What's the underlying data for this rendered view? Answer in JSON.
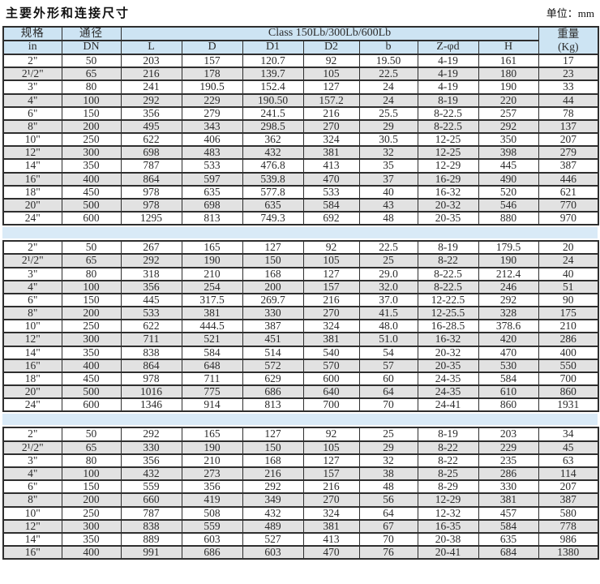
{
  "page": {
    "title": "主要外形和连接尺寸",
    "unit_label": "单位：mm"
  },
  "colors": {
    "header_bg": "#cde4f3",
    "alt_row_bg": "#e2e2e2",
    "band_bg": "#d9eaf7",
    "border": "#2e2e2e"
  },
  "table": {
    "header": {
      "spec": "规格",
      "spec_unit": "in",
      "dn": "通径",
      "dn_code": "DN",
      "class_label": "Class 150Lb/300Lb/600Lb",
      "dims": [
        "L",
        "D",
        "D1",
        "D2",
        "b",
        "Z-φd",
        "H"
      ],
      "weight": "重量",
      "weight_unit": "(Kg)"
    },
    "sections": [
      {
        "rows": [
          [
            "2\"",
            "50",
            "203",
            "157",
            "120.7",
            "92",
            "19.50",
            "4-19",
            "161",
            "17"
          ],
          [
            "2¹/2\"",
            "65",
            "216",
            "178",
            "139.7",
            "105",
            "22.5",
            "4-19",
            "180",
            "23"
          ],
          [
            "3\"",
            "80",
            "241",
            "190.5",
            "152.4",
            "127",
            "24",
            "4-19",
            "190",
            "33"
          ],
          [
            "4\"",
            "100",
            "292",
            "229",
            "190.50",
            "157.2",
            "24",
            "8-19",
            "220",
            "44"
          ],
          [
            "6\"",
            "150",
            "356",
            "279",
            "241.5",
            "216",
            "25.5",
            "8-22.5",
            "257",
            "78"
          ],
          [
            "8\"",
            "200",
            "495",
            "343",
            "298.5",
            "270",
            "29",
            "8-22.5",
            "292",
            "137"
          ],
          [
            "10\"",
            "250",
            "622",
            "406",
            "362",
            "324",
            "30.5",
            "12-25",
            "350",
            "207"
          ],
          [
            "12\"",
            "300",
            "698",
            "483",
            "432",
            "381",
            "32",
            "12-25",
            "398",
            "279"
          ],
          [
            "14\"",
            "350",
            "787",
            "533",
            "476.8",
            "413",
            "35",
            "12-29",
            "445",
            "387"
          ],
          [
            "16\"",
            "400",
            "864",
            "597",
            "539.8",
            "470",
            "37",
            "16-29",
            "490",
            "446"
          ],
          [
            "18\"",
            "450",
            "978",
            "635",
            "577.8",
            "533",
            "40",
            "16-32",
            "520",
            "621"
          ],
          [
            "20\"",
            "500",
            "978",
            "698",
            "635",
            "584",
            "43",
            "20-32",
            "546",
            "770"
          ],
          [
            "24\"",
            "600",
            "1295",
            "813",
            "749.3",
            "692",
            "48",
            "20-35",
            "880",
            "970"
          ]
        ]
      },
      {
        "rows": [
          [
            "2\"",
            "50",
            "267",
            "165",
            "127",
            "92",
            "22.5",
            "8-19",
            "179.5",
            "20"
          ],
          [
            "2¹/2\"",
            "65",
            "292",
            "190",
            "150",
            "105",
            "25",
            "8-22",
            "190",
            "24"
          ],
          [
            "3\"",
            "80",
            "318",
            "210",
            "168",
            "127",
            "29.0",
            "8-22.5",
            "212.4",
            "40"
          ],
          [
            "4\"",
            "100",
            "356",
            "254",
            "200",
            "157",
            "32.0",
            "8-22.5",
            "246",
            "51"
          ],
          [
            "6\"",
            "150",
            "445",
            "317.5",
            "269.7",
            "216",
            "37.0",
            "12-22.5",
            "292",
            "90"
          ],
          [
            "8\"",
            "200",
            "533",
            "381",
            "330",
            "270",
            "41.5",
            "12-25.5",
            "328",
            "175"
          ],
          [
            "10\"",
            "250",
            "622",
            "444.5",
            "387",
            "324",
            "48.0",
            "16-28.5",
            "378.6",
            "210"
          ],
          [
            "12\"",
            "300",
            "711",
            "521",
            "451",
            "381",
            "51.0",
            "16-32",
            "420",
            "286"
          ],
          [
            "14\"",
            "350",
            "838",
            "584",
            "514",
            "540",
            "54",
            "20-32",
            "470",
            "400"
          ],
          [
            "16\"",
            "400",
            "864",
            "648",
            "572",
            "570",
            "57",
            "20-35",
            "530",
            "550"
          ],
          [
            "18\"",
            "450",
            "978",
            "711",
            "629",
            "600",
            "60",
            "24-35",
            "584",
            "700"
          ],
          [
            "20\"",
            "500",
            "1016",
            "775",
            "686",
            "640",
            "64",
            "24-35",
            "610",
            "860"
          ],
          [
            "24\"",
            "600",
            "1346",
            "914",
            "813",
            "700",
            "70",
            "24-41",
            "860",
            "1931"
          ]
        ]
      },
      {
        "rows": [
          [
            "2\"",
            "50",
            "292",
            "165",
            "127",
            "92",
            "25",
            "8-19",
            "203",
            "34"
          ],
          [
            "2¹/2\"",
            "65",
            "330",
            "190",
            "150",
            "105",
            "29",
            "8-22",
            "229",
            "45"
          ],
          [
            "3\"",
            "80",
            "356",
            "210",
            "168",
            "127",
            "32",
            "8-22",
            "235",
            "63"
          ],
          [
            "4\"",
            "100",
            "432",
            "273",
            "216",
            "157",
            "38",
            "8-25",
            "286",
            "114"
          ],
          [
            "6\"",
            "150",
            "559",
            "356",
            "292",
            "216",
            "48",
            "8-29",
            "330",
            "207"
          ],
          [
            "8\"",
            "200",
            "660",
            "419",
            "349",
            "270",
            "56",
            "12-29",
            "381",
            "387"
          ],
          [
            "10\"",
            "250",
            "787",
            "508",
            "432",
            "324",
            "64",
            "12-32",
            "457",
            "580"
          ],
          [
            "12\"",
            "300",
            "838",
            "559",
            "489",
            "381",
            "67",
            "16-35",
            "584",
            "778"
          ],
          [
            "14\"",
            "350",
            "889",
            "603",
            "527",
            "413",
            "70",
            "20-38",
            "635",
            "986"
          ],
          [
            "16\"",
            "400",
            "991",
            "686",
            "603",
            "470",
            "76",
            "20-41",
            "684",
            "1380"
          ]
        ]
      }
    ]
  }
}
